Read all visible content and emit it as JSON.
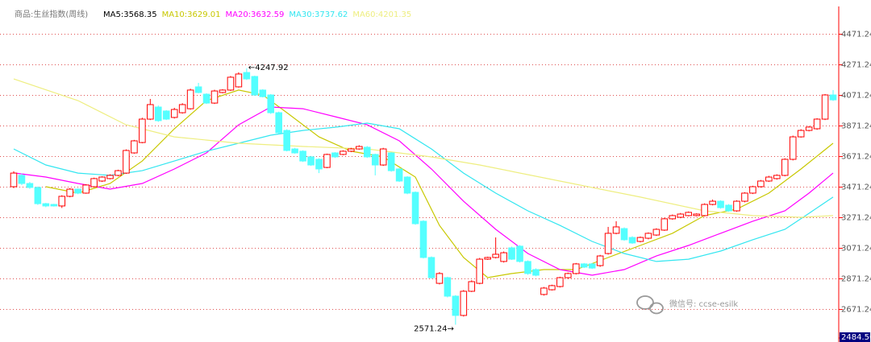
{
  "chart_data": {
    "type": "candlestick",
    "title": "商品:生丝指数(周线)",
    "up_color": "#ff0000",
    "down_color": "#54ffff",
    "grid": true,
    "ylim": [
      2484.5,
      4653
    ],
    "yticks": [
      4471.24,
      4271.24,
      4071.24,
      3871.24,
      3671.24,
      3471.24,
      3271.24,
      3071.24,
      2871.24,
      2671.24,
      {
        "value": 2484.5,
        "label": "2484.50"
      }
    ],
    "annotations": [
      {
        "text": "←4247.92",
        "candle": 29,
        "value": 4247.92
      },
      {
        "text": "2571.24→",
        "candle": 55,
        "value": 2571.24
      }
    ],
    "watermark": "微信号: ccse-esilk",
    "candles": [
      [
        3474,
        3575,
        3465,
        3563
      ],
      [
        3548,
        3560,
        3485,
        3495
      ],
      [
        3495,
        3505,
        3460,
        3469
      ],
      [
        3469,
        3475,
        3355,
        3363
      ],
      [
        3363,
        3368,
        3340,
        3348
      ],
      [
        3358,
        3362,
        3344,
        3348
      ],
      [
        3348,
        3418,
        3335,
        3411
      ],
      [
        3411,
        3465,
        3405,
        3458
      ],
      [
        3458,
        3462,
        3425,
        3432
      ],
      [
        3432,
        3490,
        3428,
        3485
      ],
      [
        3474,
        3533,
        3470,
        3527
      ],
      [
        3511,
        3542,
        3505,
        3537
      ],
      [
        3527,
        3555,
        3522,
        3548
      ],
      [
        3548,
        3585,
        3542,
        3579
      ],
      [
        3563,
        3718,
        3558,
        3711
      ],
      [
        3695,
        3780,
        3690,
        3774
      ],
      [
        3763,
        3925,
        3758,
        3916
      ],
      [
        3916,
        4048,
        3910,
        4011
      ],
      [
        3995,
        4005,
        3898,
        3906
      ],
      [
        3969,
        3975,
        3910,
        3916
      ],
      [
        3927,
        3990,
        3920,
        3979
      ],
      [
        3958,
        4020,
        3952,
        4011
      ],
      [
        3984,
        4115,
        3978,
        4106
      ],
      [
        4127,
        4153,
        4085,
        4090
      ],
      [
        4079,
        4085,
        4015,
        4021
      ],
      [
        4021,
        4108,
        4015,
        4100
      ],
      [
        4090,
        4112,
        4085,
        4106
      ],
      [
        4106,
        4198,
        4100,
        4190
      ],
      [
        4127,
        4222,
        4122,
        4211
      ],
      [
        4221,
        4247.92,
        4172,
        4179
      ],
      [
        4195,
        4200,
        4068,
        4074
      ],
      [
        4106,
        4112,
        4058,
        4063
      ],
      [
        4074,
        4080,
        3950,
        3958
      ],
      [
        3958,
        3965,
        3820,
        3827
      ],
      [
        3842,
        3850,
        3705,
        3711
      ],
      [
        3721,
        3728,
        3690,
        3695
      ],
      [
        3706,
        3712,
        3636,
        3642
      ],
      [
        3669,
        3675,
        3610,
        3616
      ],
      [
        3653,
        3660,
        3563,
        3590
      ],
      [
        3600,
        3690,
        3595,
        3685
      ],
      [
        3695,
        3700,
        3662,
        3669
      ],
      [
        3685,
        3712,
        3680,
        3706
      ],
      [
        3706,
        3728,
        3700,
        3721
      ],
      [
        3721,
        3745,
        3716,
        3737
      ],
      [
        3732,
        3740,
        3662,
        3669
      ],
      [
        3685,
        3690,
        3548,
        3616
      ],
      [
        3616,
        3728,
        3610,
        3721
      ],
      [
        3695,
        3700,
        3572,
        3579
      ],
      [
        3590,
        3596,
        3505,
        3511
      ],
      [
        3537,
        3543,
        3425,
        3432
      ],
      [
        3437,
        3443,
        3225,
        3232
      ],
      [
        3248,
        3255,
        3005,
        3011
      ],
      [
        3011,
        3018,
        2872,
        2879
      ],
      [
        2842,
        2915,
        2835,
        2906
      ],
      [
        2879,
        2885,
        2750,
        2758
      ],
      [
        2758,
        2765,
        2571.24,
        2632
      ],
      [
        2632,
        2798,
        2625,
        2790
      ],
      [
        2790,
        2862,
        2785,
        2853
      ],
      [
        2842,
        3008,
        2836,
        3000
      ],
      [
        3000,
        3016,
        2995,
        3011
      ],
      [
        3011,
        3142,
        3005,
        3032
      ],
      [
        2985,
        3050,
        2978,
        3042
      ],
      [
        3074,
        3082,
        2995,
        3000
      ],
      [
        3085,
        3092,
        2978,
        2985
      ],
      [
        2985,
        2992,
        2898,
        2906
      ],
      [
        2932,
        2940,
        2888,
        2895
      ],
      [
        2769,
        2818,
        2762,
        2811
      ],
      [
        2800,
        2833,
        2795,
        2827
      ],
      [
        2821,
        2885,
        2815,
        2879
      ],
      [
        2879,
        2912,
        2873,
        2906
      ],
      [
        2906,
        2975,
        2900,
        2969
      ],
      [
        2969,
        2975,
        2942,
        2948
      ],
      [
        2969,
        2975,
        2936,
        2942
      ],
      [
        2958,
        3028,
        2950,
        3021
      ],
      [
        3037,
        3211,
        3030,
        3169
      ],
      [
        3169,
        3248,
        3163,
        3211
      ],
      [
        3200,
        3208,
        3120,
        3127
      ],
      [
        3142,
        3150,
        3100,
        3106
      ],
      [
        3116,
        3148,
        3110,
        3142
      ],
      [
        3137,
        3175,
        3130,
        3169
      ],
      [
        3158,
        3202,
        3152,
        3195
      ],
      [
        3190,
        3270,
        3185,
        3264
      ],
      [
        3264,
        3292,
        3258,
        3285
      ],
      [
        3274,
        3302,
        3268,
        3295
      ],
      [
        3285,
        3312,
        3280,
        3306
      ],
      [
        3285,
        3300,
        3280,
        3295
      ],
      [
        3285,
        3365,
        3280,
        3358
      ],
      [
        3358,
        3390,
        3352,
        3379
      ],
      [
        3379,
        3385,
        3330,
        3337
      ],
      [
        3353,
        3360,
        3310,
        3316
      ],
      [
        3316,
        3385,
        3310,
        3379
      ],
      [
        3379,
        3438,
        3372,
        3432
      ],
      [
        3432,
        3480,
        3426,
        3474
      ],
      [
        3474,
        3518,
        3468,
        3511
      ],
      [
        3511,
        3545,
        3505,
        3537
      ],
      [
        3527,
        3555,
        3520,
        3548
      ],
      [
        3548,
        3660,
        3542,
        3653
      ],
      [
        3653,
        3808,
        3646,
        3800
      ],
      [
        3800,
        3850,
        3795,
        3842
      ],
      [
        3842,
        3870,
        3836,
        3864
      ],
      [
        3853,
        3922,
        3846,
        3916
      ],
      [
        3916,
        4080,
        3910,
        4074
      ],
      [
        4074,
        4106,
        4035,
        4042
      ]
    ],
    "series": [
      {
        "name": "MA5:3568.35",
        "color": "#000000"
      },
      {
        "name": "MA10:3629.01",
        "color": "#c8c800",
        "x": [
          4,
          8,
          12,
          16,
          20,
          24,
          28,
          31,
          34,
          38,
          42,
          46,
          50,
          53,
          56,
          59,
          62,
          66,
          70,
          74,
          78,
          82,
          86,
          90,
          94,
          98,
          102
        ],
        "values": [
          3474,
          3432,
          3495,
          3642,
          3853,
          4037,
          4106,
          4074,
          3958,
          3800,
          3706,
          3669,
          3537,
          3221,
          3011,
          2879,
          2906,
          2932,
          2932,
          3011,
          3090,
          3169,
          3285,
          3327,
          3432,
          3590,
          3758
        ]
      },
      {
        "name": "MA20:3632.59",
        "color": "#ff00ff",
        "x": [
          0,
          4,
          8,
          12,
          16,
          20,
          24,
          28,
          32,
          36,
          40,
          44,
          48,
          52,
          56,
          60,
          64,
          68,
          72,
          76,
          80,
          84,
          88,
          92,
          96,
          99,
          102
        ],
        "values": [
          3564,
          3537,
          3495,
          3458,
          3495,
          3590,
          3695,
          3879,
          3995,
          3984,
          3932,
          3879,
          3774,
          3590,
          3379,
          3195,
          3037,
          2932,
          2895,
          2932,
          3021,
          3090,
          3169,
          3248,
          3316,
          3432,
          3563
        ]
      },
      {
        "name": "MA30:3737.62",
        "color": "#33e6f0",
        "x": [
          0,
          4,
          8,
          12,
          16,
          20,
          24,
          28,
          32,
          36,
          40,
          44,
          48,
          52,
          56,
          60,
          64,
          68,
          72,
          76,
          80,
          84,
          88,
          92,
          96,
          99,
          102
        ],
        "values": [
          3721,
          3616,
          3563,
          3548,
          3579,
          3642,
          3706,
          3758,
          3811,
          3842,
          3863,
          3890,
          3853,
          3721,
          3563,
          3432,
          3316,
          3221,
          3116,
          3037,
          2985,
          3000,
          3053,
          3127,
          3195,
          3300,
          3406
        ]
      },
      {
        "name": "MA60:4201.35",
        "color": "#eeee80",
        "x": [
          0,
          8,
          14,
          20,
          28,
          36,
          44,
          52,
          58,
          68,
          78,
          86,
          92,
          98,
          102
        ],
        "values": [
          4179,
          4037,
          3879,
          3800,
          3758,
          3737,
          3721,
          3669,
          3616,
          3511,
          3406,
          3316,
          3285,
          3274,
          3285
        ]
      }
    ]
  }
}
